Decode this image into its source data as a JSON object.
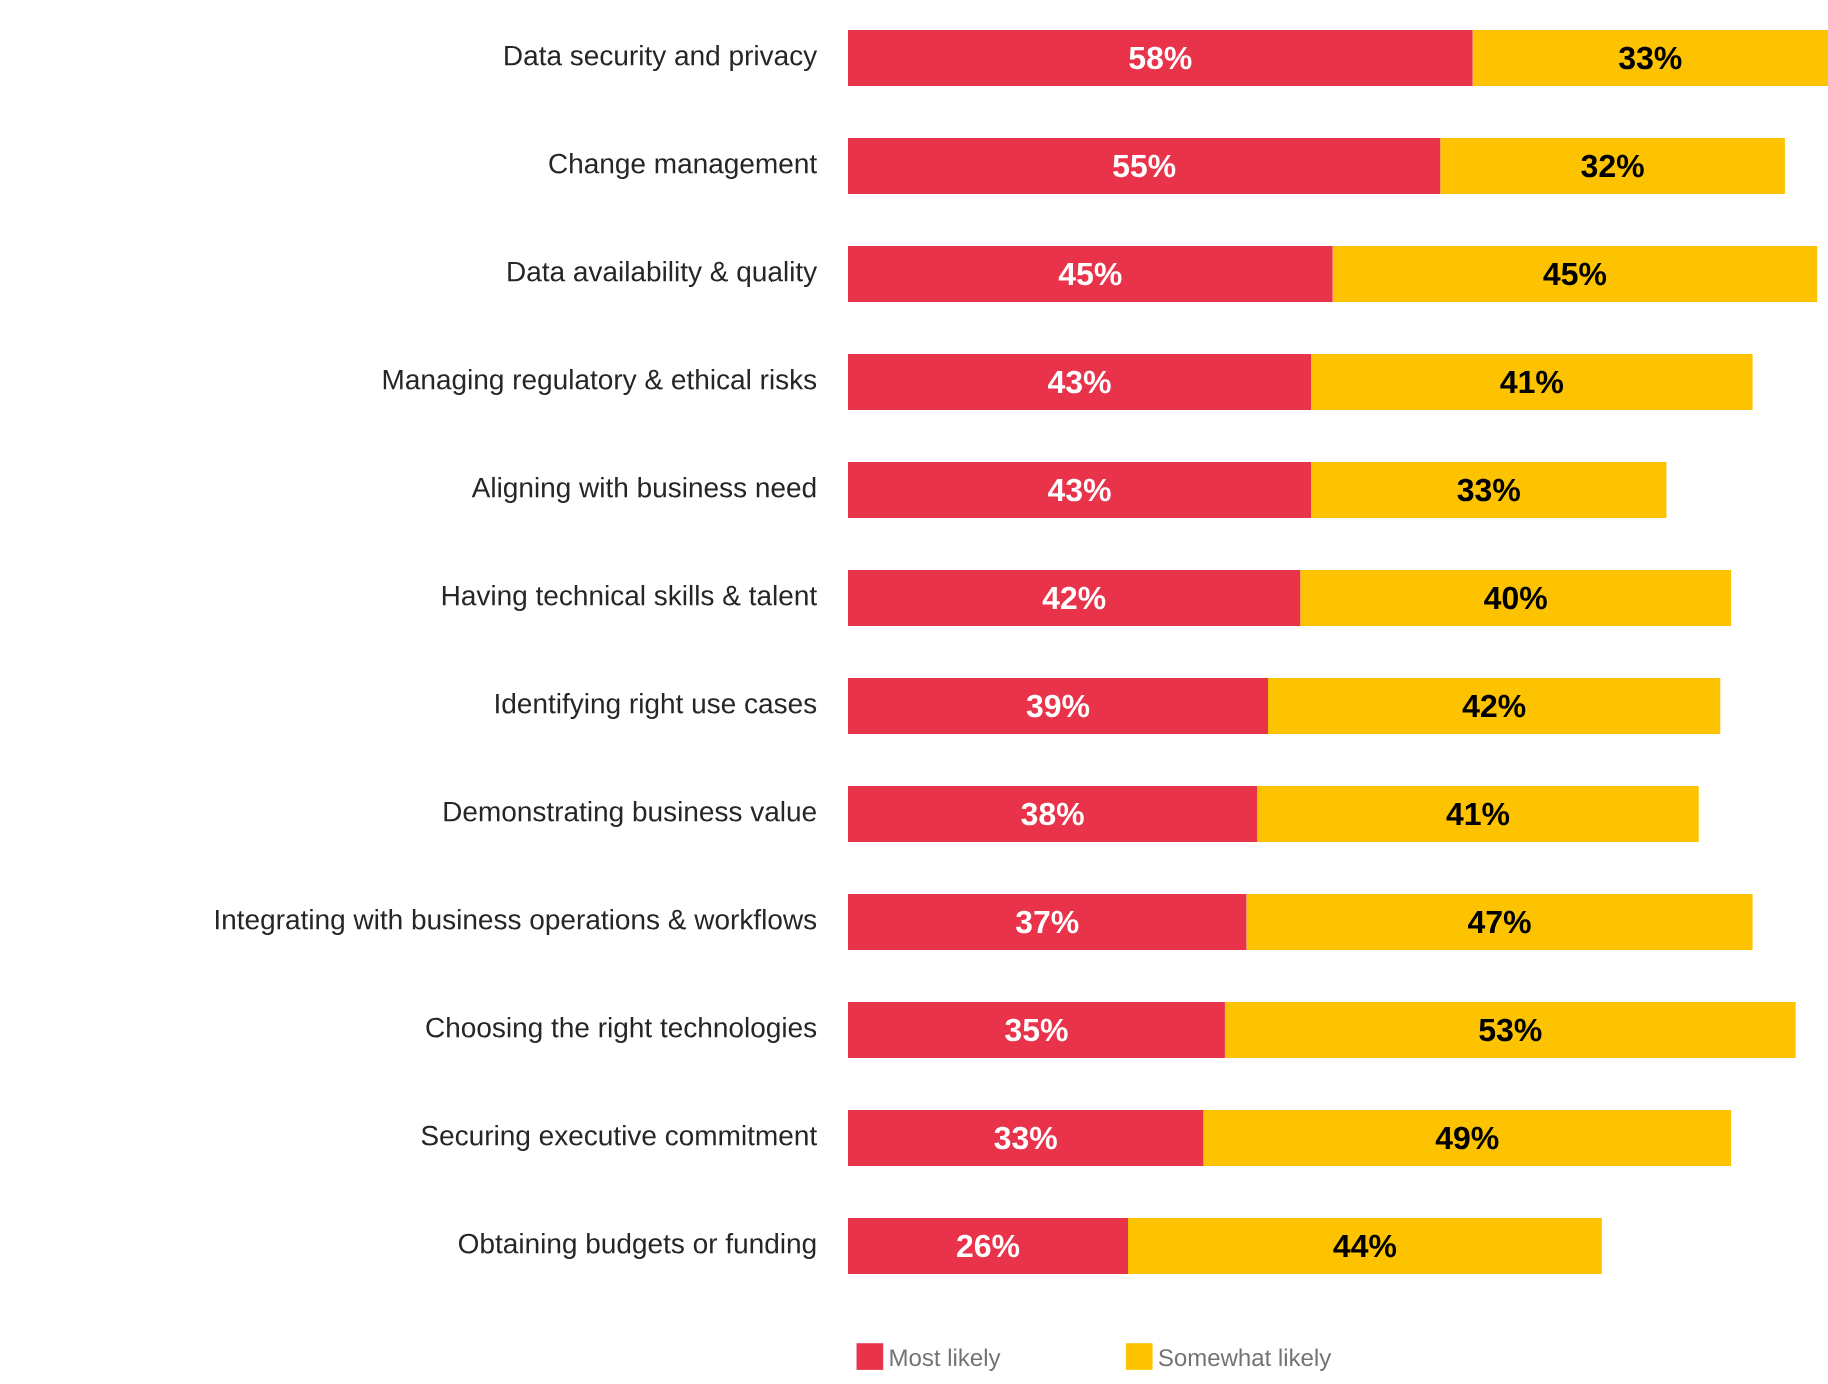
{
  "chart_data": {
    "type": "bar",
    "orientation": "horizontal",
    "stacked": true,
    "legend": "bottom left",
    "categories": [
      "Data security and privacy",
      "Change management",
      "Data availability & quality",
      "Managing regulatory & ethical risks",
      "Aligning with business need",
      "Having technical skills & talent",
      "Identifying right use cases",
      "Demonstrating business value",
      "Integrating with business operations & workflows",
      "Choosing the right technologies",
      "Securing executive commitment",
      "Obtaining budgets or funding"
    ],
    "series": [
      {
        "name": "Most likely",
        "color": "#e8334a",
        "values": [
          58,
          55,
          45,
          43,
          43,
          42,
          39,
          38,
          37,
          35,
          33,
          26
        ],
        "value_labels": [
          "58%",
          "55%",
          "45%",
          "43%",
          "43%",
          "42%",
          "39%",
          "38%",
          "37%",
          "35%",
          "33%",
          "26%"
        ]
      },
      {
        "name": "Somewhat likely",
        "color": "#fdc300",
        "values": [
          33,
          32,
          45,
          41,
          33,
          40,
          42,
          41,
          47,
          53,
          49,
          44
        ],
        "value_labels": [
          "33%",
          "32%",
          "45%",
          "41%",
          "33%",
          "40%",
          "42%",
          "41%",
          "47%",
          "53%",
          "49%",
          "44%"
        ]
      }
    ]
  }
}
